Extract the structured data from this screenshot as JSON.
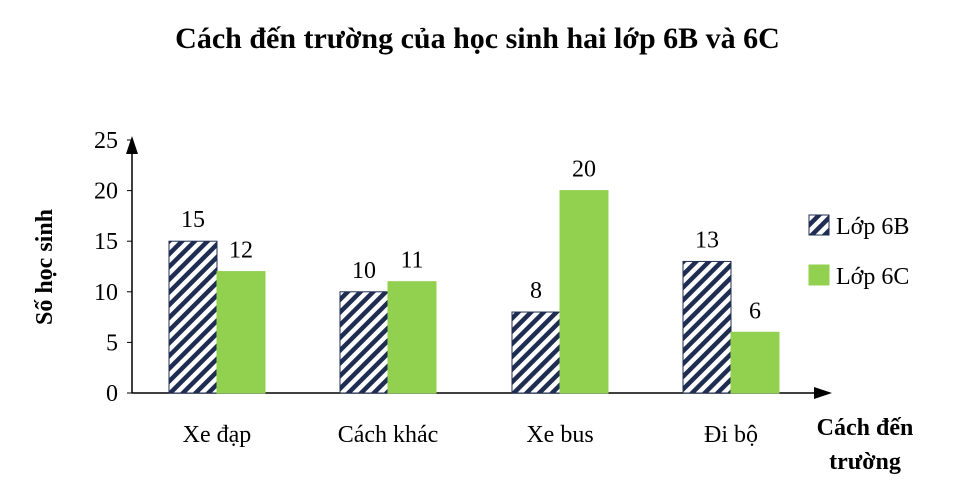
{
  "chart_data": {
    "type": "bar",
    "title": "Cách đến trường của học sinh hai lớp 6B và 6C",
    "xlabel": "Cách đến trường",
    "xlabel_lines": [
      "Cách đến",
      "trường"
    ],
    "ylabel": "Số học sinh",
    "categories": [
      "Xe đạp",
      "Cách khác",
      "Xe bus",
      "Đi bộ"
    ],
    "series": [
      {
        "name": "Lớp 6B",
        "values": [
          15,
          10,
          8,
          13
        ],
        "color": "#1f2d52",
        "pattern": "diagonal-stripes"
      },
      {
        "name": "Lớp 6C",
        "values": [
          12,
          11,
          20,
          6
        ],
        "color": "#92d050"
      }
    ],
    "ylim": [
      0,
      25
    ],
    "yticks": [
      "0",
      "5",
      "10",
      "15",
      "20",
      "25"
    ],
    "grid": false,
    "legend_position": "right"
  }
}
